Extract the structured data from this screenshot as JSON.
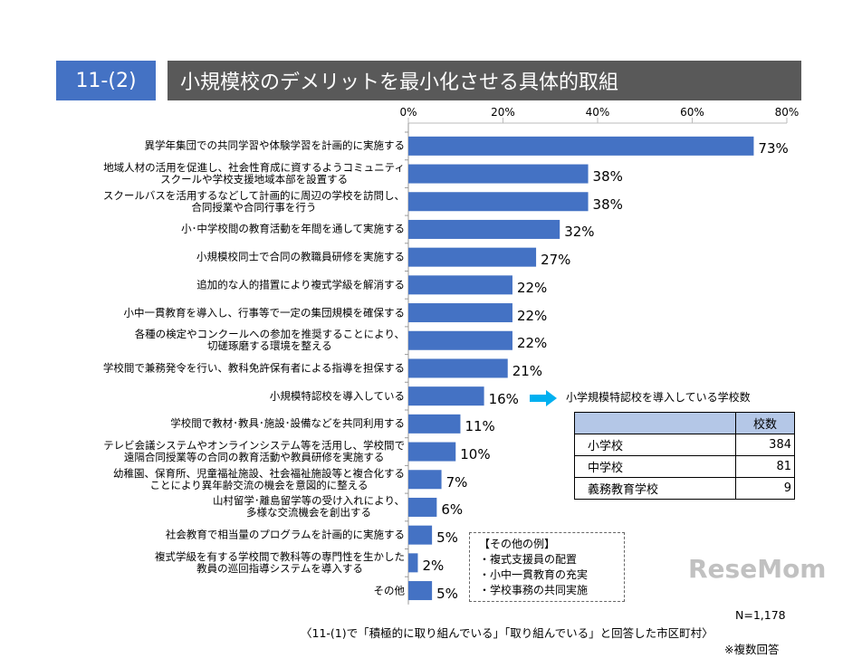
{
  "header": {
    "number": "11-(2)",
    "title": "小規模校のデメリットを最小化させる具体的取組"
  },
  "chart_data": {
    "type": "bar",
    "orientation": "horizontal",
    "xlim": [
      0,
      80
    ],
    "ticks": [
      "0%",
      "20%",
      "40%",
      "60%",
      "80%"
    ],
    "tick_values": [
      0,
      20,
      40,
      60,
      80
    ],
    "grid": true,
    "bar_color": "#4472C4",
    "categories": [
      [
        "異学年集団での共同学習や体験学習を計画的に実施する"
      ],
      [
        "地域人材の活用を促進し、社会性育成に資するようコミュニティ",
        "スクールや学校支援地域本部を設置する"
      ],
      [
        "スクールバスを活用するなどして計画的に周辺の学校を訪問し、",
        "合同授業や合同行事を行う"
      ],
      [
        "小･中学校間の教育活動を年間を通して実施する"
      ],
      [
        "小規模校同士で合同の教職員研修を実施する"
      ],
      [
        "追加的な人的措置により複式学級を解消する"
      ],
      [
        "小中一貫教育を導入し、行事等で一定の集団規模を確保する"
      ],
      [
        "各種の検定やコンクールへの参加を推奨することにより、",
        "切磋琢磨する環境を整える"
      ],
      [
        "学校間で兼務発令を行い、教科免許保有者による指導を担保する"
      ],
      [
        "小規模特認校を導入している"
      ],
      [
        "学校間で教材･教具･施設･設備などを共同利用する"
      ],
      [
        "テレビ会議システムやオンラインシステム等を活用し、学校間で",
        "遠隔合同授業等の合同の教育活動や教員研修を実施する"
      ],
      [
        "幼稚園、保育所、児童福祉施設、社会福祉施設等と複合化する",
        "ことにより異年齢交流の機会を意図的に整える"
      ],
      [
        "山村留学･離島留学等の受け入れにより、",
        "多様な交流機会を創出する"
      ],
      [
        "社会教育で相当量のプログラムを計画的に実施する"
      ],
      [
        "複式学級を有する学校間で教科等の専門性を生かした",
        "教員の巡回指導システムを導入する"
      ],
      [
        "その他"
      ]
    ],
    "values": [
      73,
      38,
      38,
      32,
      27,
      22,
      22,
      22,
      21,
      16,
      11,
      10,
      7,
      6,
      5,
      2,
      5
    ],
    "value_labels": [
      "73%",
      "38%",
      "38%",
      "32%",
      "27%",
      "22%",
      "22%",
      "22%",
      "21%",
      "16%",
      "11%",
      "10%",
      "7%",
      "6%",
      "5%",
      "2%",
      "5%"
    ]
  },
  "callout": {
    "arrow_color": "#00B0F0",
    "title": "小学規模特認校を導入している学校数",
    "header": "校数",
    "rows": [
      {
        "name": "小学校",
        "count": "384"
      },
      {
        "name": "中学校",
        "count": "81"
      },
      {
        "name": "義務教育学校",
        "count": "9"
      }
    ]
  },
  "other_examples": {
    "title": "【その他の例】",
    "items": [
      "・複式支援員の配置",
      "・小中一貫教育の充実",
      "・学校事務の共同実施"
    ]
  },
  "footer": {
    "n": "N=1,178",
    "note": "〈11-(1)で「積極的に取り組んでいる」「取り組んでいる」と回答した市区町村〉",
    "multi": "※複数回答"
  },
  "watermark": "ReseMom"
}
